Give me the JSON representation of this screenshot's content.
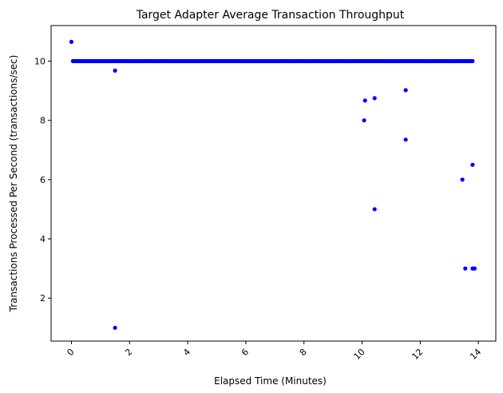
{
  "chart_data": {
    "type": "scatter",
    "title": "Target Adapter Average Transaction Throughput",
    "xlabel": "Elapsed Time (Minutes)",
    "ylabel": "Transactions Processed Per Second (transactions/sec)",
    "xlim": [
      -0.7,
      14.6
    ],
    "ylim": [
      0.55,
      11.2
    ],
    "xticks": [
      0,
      2,
      4,
      6,
      8,
      10,
      12,
      14
    ],
    "yticks": [
      2,
      4,
      6,
      8,
      10
    ],
    "x_tick_rotation_deg": 45,
    "grid": false,
    "legend": "none",
    "marker_color": "#0000ff",
    "dense_band": {
      "y": 10.0,
      "x_start": 0.05,
      "x_end": 13.8,
      "step": 0.05
    },
    "points": [
      {
        "x": 0.0,
        "y": 10.65
      },
      {
        "x": 1.5,
        "y": 9.68
      },
      {
        "x": 1.5,
        "y": 1.0
      },
      {
        "x": 10.07,
        "y": 8.0
      },
      {
        "x": 10.1,
        "y": 8.67
      },
      {
        "x": 10.43,
        "y": 8.75
      },
      {
        "x": 10.43,
        "y": 5.0
      },
      {
        "x": 11.5,
        "y": 9.02
      },
      {
        "x": 11.5,
        "y": 7.35
      },
      {
        "x": 13.45,
        "y": 6.0
      },
      {
        "x": 13.55,
        "y": 3.0
      },
      {
        "x": 13.8,
        "y": 6.5
      },
      {
        "x": 13.8,
        "y": 3.0
      },
      {
        "x": 13.87,
        "y": 3.0
      }
    ]
  }
}
